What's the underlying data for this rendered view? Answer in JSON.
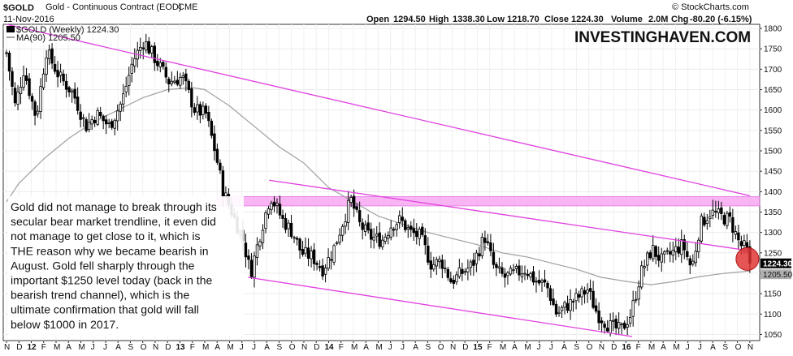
{
  "header": {
    "symbol": "$GOLD",
    "description": "Gold - Continuous Contract (EOD)",
    "exchange": "CME",
    "date": "11-Nov-2016",
    "open_label": "Open",
    "open": "1294.50",
    "high_label": "High",
    "high": "1338.30",
    "low_label": "Low",
    "low": "1218.70",
    "close_label": "Close",
    "close": "1224.30",
    "volume_label": "Volume",
    "volume": "2.0M",
    "chg_label": "Chg",
    "chg": "-80.20 (-6.15%)",
    "copyright": "© StockCharts.com",
    "watermark": "INVESTINGHAVEN.COM"
  },
  "legend": {
    "price": "$GOLD (Weekly) 1224.30",
    "ma": "MA(90) 1205.50"
  },
  "annotation": "Gold did not manage to break through its secular bear market trendline, it even did not manage to get close to it, which is THE reason why we became bearish in August. Gold fell sharply through the important $1250 level today (back in the bearish trend channel), which is the ultimate confirmation that gold will fall below $1000 in 2017.",
  "annotation_lines": [
    "Gold did not manage to break through its",
    "secular bear market trendline, it even did",
    "not manage to get close to it, which is",
    "THE reason why we became bearish in",
    "August. Gold fell sharply through the",
    "important $1250 level today (back in the",
    "bearish trend channel), which is the",
    "ultimate confirmation that gold will fall",
    "below $1000 in 2017."
  ],
  "price_labels": {
    "last": "1224.30",
    "ma": "1205.50"
  },
  "colors": {
    "candle": "#000000",
    "ma": "#a0a0a0",
    "trendline": "#e040e0",
    "resistance_band": "#f7a8f2",
    "highlight_circle": "#e03030",
    "price_flag": "#000000",
    "ma_flag": "#b0b0b0"
  },
  "chart_data": {
    "type": "candlestick",
    "interval": "weekly",
    "x_start": "2011-11",
    "x_end": "2016-11",
    "ylim": [
      1035,
      1810
    ],
    "y_ticks": [
      1050,
      1100,
      1150,
      1200,
      1250,
      1300,
      1350,
      1400,
      1450,
      1500,
      1550,
      1600,
      1650,
      1700,
      1750,
      1800
    ],
    "x_ticks": [
      {
        "t": 0,
        "label": "N"
      },
      {
        "t": 1,
        "label": "D"
      },
      {
        "t": 2,
        "label": "12"
      },
      {
        "t": 3,
        "label": "F"
      },
      {
        "t": 4,
        "label": "M"
      },
      {
        "t": 5,
        "label": "A"
      },
      {
        "t": 6,
        "label": "M"
      },
      {
        "t": 7,
        "label": "J"
      },
      {
        "t": 8,
        "label": "J"
      },
      {
        "t": 9,
        "label": "A"
      },
      {
        "t": 10,
        "label": "S"
      },
      {
        "t": 11,
        "label": "O"
      },
      {
        "t": 12,
        "label": "N"
      },
      {
        "t": 13,
        "label": "D"
      },
      {
        "t": 14,
        "label": "13"
      },
      {
        "t": 15,
        "label": "F"
      },
      {
        "t": 16,
        "label": "M"
      },
      {
        "t": 17,
        "label": "A"
      },
      {
        "t": 18,
        "label": "M"
      },
      {
        "t": 19,
        "label": "J"
      },
      {
        "t": 20,
        "label": "J"
      },
      {
        "t": 21,
        "label": "A"
      },
      {
        "t": 22,
        "label": "S"
      },
      {
        "t": 23,
        "label": "O"
      },
      {
        "t": 24,
        "label": "N"
      },
      {
        "t": 25,
        "label": "D"
      },
      {
        "t": 26,
        "label": "14"
      },
      {
        "t": 27,
        "label": "F"
      },
      {
        "t": 28,
        "label": "M"
      },
      {
        "t": 29,
        "label": "A"
      },
      {
        "t": 30,
        "label": "M"
      },
      {
        "t": 31,
        "label": "J"
      },
      {
        "t": 32,
        "label": "J"
      },
      {
        "t": 33,
        "label": "A"
      },
      {
        "t": 34,
        "label": "S"
      },
      {
        "t": 35,
        "label": "O"
      },
      {
        "t": 36,
        "label": "N"
      },
      {
        "t": 37,
        "label": "D"
      },
      {
        "t": 38,
        "label": "15"
      },
      {
        "t": 39,
        "label": "F"
      },
      {
        "t": 40,
        "label": "M"
      },
      {
        "t": 41,
        "label": "A"
      },
      {
        "t": 42,
        "label": "M"
      },
      {
        "t": 43,
        "label": "J"
      },
      {
        "t": 44,
        "label": "J"
      },
      {
        "t": 45,
        "label": "A"
      },
      {
        "t": 46,
        "label": "S"
      },
      {
        "t": 47,
        "label": "O"
      },
      {
        "t": 48,
        "label": "N"
      },
      {
        "t": 49,
        "label": "D"
      },
      {
        "t": 50,
        "label": "16"
      },
      {
        "t": 51,
        "label": "F"
      },
      {
        "t": 52,
        "label": "M"
      },
      {
        "t": 53,
        "label": "A"
      },
      {
        "t": 54,
        "label": "M"
      },
      {
        "t": 55,
        "label": "J"
      },
      {
        "t": 56,
        "label": "J"
      },
      {
        "t": 57,
        "label": "A"
      },
      {
        "t": 58,
        "label": "S"
      },
      {
        "t": 59,
        "label": "O"
      },
      {
        "t": 60,
        "label": "N"
      }
    ],
    "price_path": [
      [
        0,
        1740
      ],
      [
        0.7,
        1610
      ],
      [
        1.4,
        1700
      ],
      [
        2.4,
        1580
      ],
      [
        3.2,
        1745
      ],
      [
        4.3,
        1680
      ],
      [
        5.4,
        1640
      ],
      [
        6.4,
        1560
      ],
      [
        7.3,
        1590
      ],
      [
        8.3,
        1560
      ],
      [
        9.3,
        1620
      ],
      [
        10.2,
        1720
      ],
      [
        11.1,
        1770
      ],
      [
        12.1,
        1720
      ],
      [
        13.1,
        1670
      ],
      [
        14.2,
        1680
      ],
      [
        15.2,
        1600
      ],
      [
        16.1,
        1590
      ],
      [
        16.9,
        1490
      ],
      [
        17.5,
        1400
      ],
      [
        18.2,
        1350
      ],
      [
        19.1,
        1280
      ],
      [
        19.7,
        1200
      ],
      [
        20.5,
        1300
      ],
      [
        21.3,
        1390
      ],
      [
        22.3,
        1330
      ],
      [
        23.1,
        1300
      ],
      [
        23.8,
        1250
      ],
      [
        24.7,
        1240
      ],
      [
        25.5,
        1210
      ],
      [
        26.3,
        1250
      ],
      [
        27.2,
        1330
      ],
      [
        27.8,
        1380
      ],
      [
        28.5,
        1320
      ],
      [
        29.3,
        1290
      ],
      [
        30.3,
        1280
      ],
      [
        31.1,
        1320
      ],
      [
        31.8,
        1330
      ],
      [
        32.6,
        1300
      ],
      [
        33.4,
        1290
      ],
      [
        34.3,
        1220
      ],
      [
        35.1,
        1230
      ],
      [
        35.9,
        1180
      ],
      [
        36.7,
        1200
      ],
      [
        37.6,
        1220
      ],
      [
        38.6,
        1290
      ],
      [
        39.4,
        1210
      ],
      [
        40.2,
        1190
      ],
      [
        41.1,
        1200
      ],
      [
        41.9,
        1210
      ],
      [
        42.7,
        1180
      ],
      [
        43.6,
        1170
      ],
      [
        44.4,
        1100
      ],
      [
        45.2,
        1120
      ],
      [
        46.1,
        1140
      ],
      [
        46.9,
        1160
      ],
      [
        47.7,
        1100
      ],
      [
        48.7,
        1070
      ],
      [
        49.6,
        1060
      ],
      [
        50.4,
        1100
      ],
      [
        51.2,
        1200
      ],
      [
        52.1,
        1260
      ],
      [
        52.9,
        1230
      ],
      [
        53.7,
        1250
      ],
      [
        54.6,
        1270
      ],
      [
        55.3,
        1210
      ],
      [
        56.0,
        1320
      ],
      [
        56.8,
        1350
      ],
      [
        57.6,
        1340
      ],
      [
        58.4,
        1330
      ],
      [
        59.2,
        1270
      ],
      [
        59.7,
        1260
      ],
      [
        60.0,
        1224
      ]
    ],
    "close_last": 1224.3,
    "ma90_path": [
      [
        0,
        1375
      ],
      [
        1,
        1420
      ],
      [
        3,
        1480
      ],
      [
        5,
        1530
      ],
      [
        7,
        1570
      ],
      [
        9,
        1600
      ],
      [
        11,
        1630
      ],
      [
        13,
        1650
      ],
      [
        15,
        1655
      ],
      [
        16,
        1650
      ],
      [
        18,
        1610
      ],
      [
        20,
        1560
      ],
      [
        22,
        1510
      ],
      [
        24,
        1470
      ],
      [
        25,
        1440
      ],
      [
        26,
        1410
      ],
      [
        28,
        1375
      ],
      [
        30,
        1340
      ],
      [
        32,
        1320
      ],
      [
        34,
        1300
      ],
      [
        36,
        1285
      ],
      [
        38,
        1270
      ],
      [
        40,
        1250
      ],
      [
        42,
        1240
      ],
      [
        44,
        1225
      ],
      [
        46,
        1210
      ],
      [
        48,
        1190
      ],
      [
        50,
        1180
      ],
      [
        52,
        1172
      ],
      [
        54,
        1180
      ],
      [
        56,
        1192
      ],
      [
        58,
        1200
      ],
      [
        60,
        1205.5
      ]
    ],
    "ma90_last": 1205.5,
    "trendlines": [
      {
        "name": "secular bear trendline",
        "x": [
          0,
          60
        ],
        "y": [
          1810,
          1390
        ]
      },
      {
        "name": "channel top",
        "x": [
          21.2,
          60
        ],
        "y": [
          1428,
          1255
        ]
      },
      {
        "name": "channel bottom",
        "x": [
          19.5,
          50.5
        ],
        "y": [
          1190,
          1045
        ]
      }
    ],
    "resistance_band": {
      "y": [
        1365,
        1388
      ]
    },
    "highlight": {
      "x": 59.8,
      "y": 1235
    }
  }
}
